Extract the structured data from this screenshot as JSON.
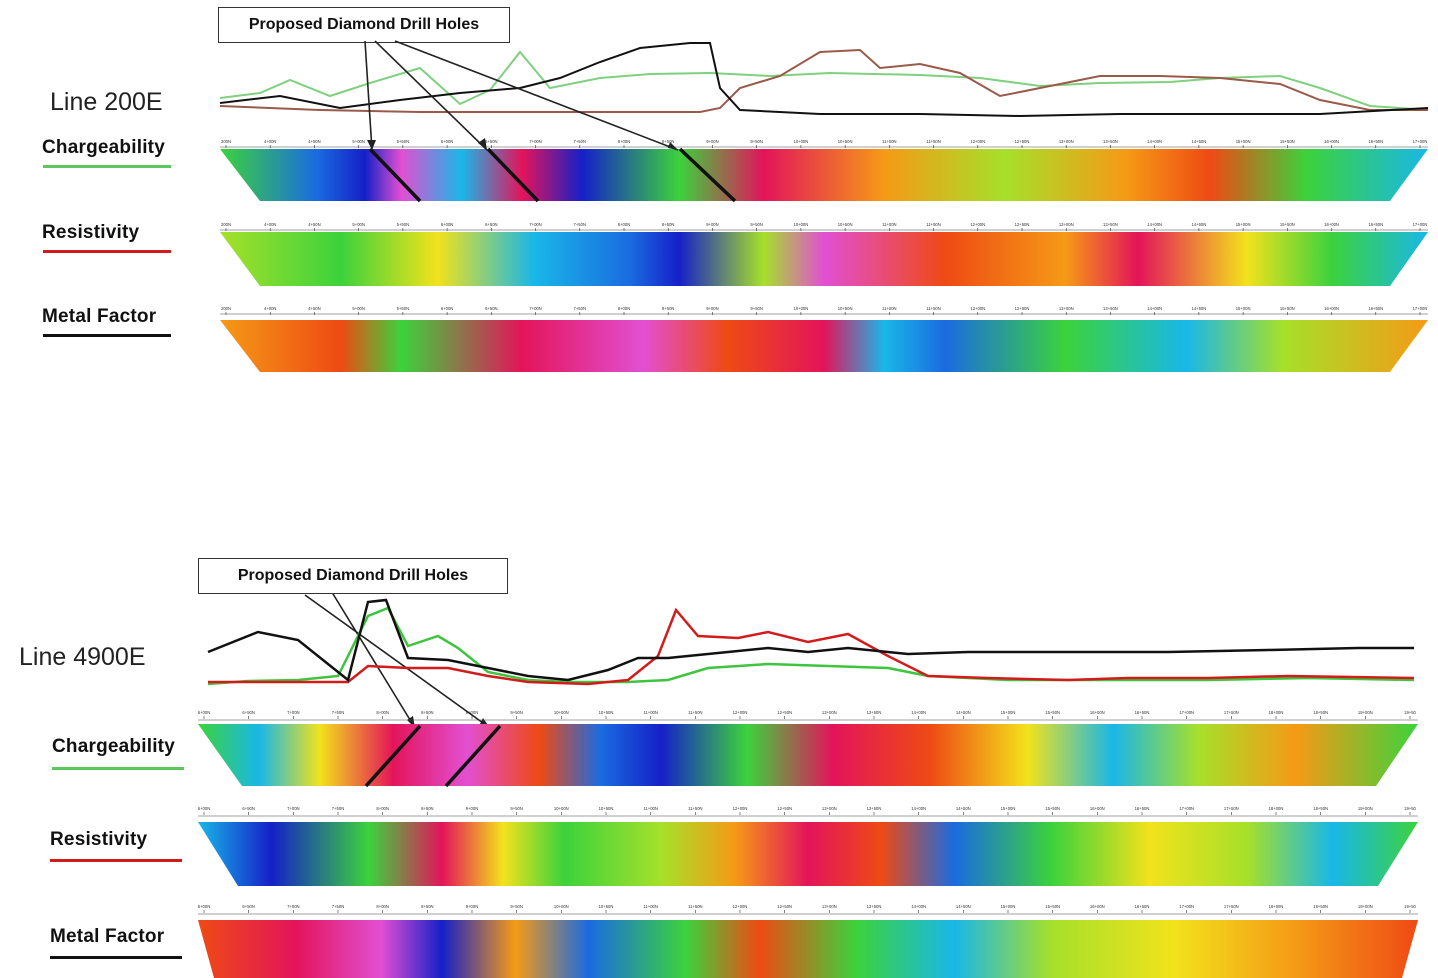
{
  "panels": [
    {
      "id": "p200e",
      "line_title": "Line 200E",
      "callout": "Proposed Diamond Drill Holes",
      "sections": [
        {
          "name": "chargeability",
          "label": "Chargeability",
          "color": "#5cc85c"
        },
        {
          "name": "resistivity",
          "label": "Resistivity",
          "color": "#d21c1c"
        },
        {
          "name": "metal-factor",
          "label": "Metal Factor",
          "color": "#111111"
        }
      ],
      "stations": [
        "200N",
        "4+00N",
        "4+50N",
        "5+00N",
        "5+50N",
        "6+00N",
        "6+50N",
        "7+00N",
        "7+50N",
        "8+00N",
        "8+50N",
        "9+00N",
        "9+50N",
        "10+00N",
        "10+50N",
        "11+00N",
        "11+50N",
        "12+00N",
        "12+50N",
        "13+00N",
        "13+50N",
        "14+00N",
        "14+50N",
        "15+00N",
        "15+50N",
        "16+00N",
        "16+50N",
        "17+00N"
      ]
    },
    {
      "id": "p4900e",
      "line_title": "Line 4900E",
      "callout": "Proposed Diamond Drill Holes",
      "sections": [
        {
          "name": "chargeability",
          "label": "Chargeability",
          "color": "#5cc85c"
        },
        {
          "name": "resistivity",
          "label": "Resistivity",
          "color": "#d21c1c"
        },
        {
          "name": "metal-factor",
          "label": "Metal Factor",
          "color": "#111111"
        }
      ],
      "stations": [
        "6+00N",
        "6+50N",
        "7+00N",
        "7+50N",
        "8+00N",
        "8+50N",
        "9+00N",
        "9+50N",
        "10+00N",
        "10+50N",
        "11+00N",
        "11+50N",
        "12+00N",
        "12+50N",
        "13+00N",
        "13+50N",
        "14+00N",
        "14+50N",
        "15+00N",
        "15+50N",
        "16+00N",
        "16+50N",
        "17+00N",
        "17+50N",
        "18+00N",
        "18+50N",
        "19+00N",
        "19+50"
      ]
    }
  ],
  "colors": {
    "palette": [
      "#1520c8",
      "#1a6be0",
      "#19b7e8",
      "#2fd6a8",
      "#3cd23c",
      "#a6e02a",
      "#f2e21c",
      "#f59a16",
      "#ee4a14",
      "#e3145a",
      "#e24fd2",
      "#f2a2ea"
    ],
    "chargeability_profile": "#5cc85c",
    "resistivity_profile": "#d21c1c",
    "metal_factor_profile": "#111111"
  }
}
